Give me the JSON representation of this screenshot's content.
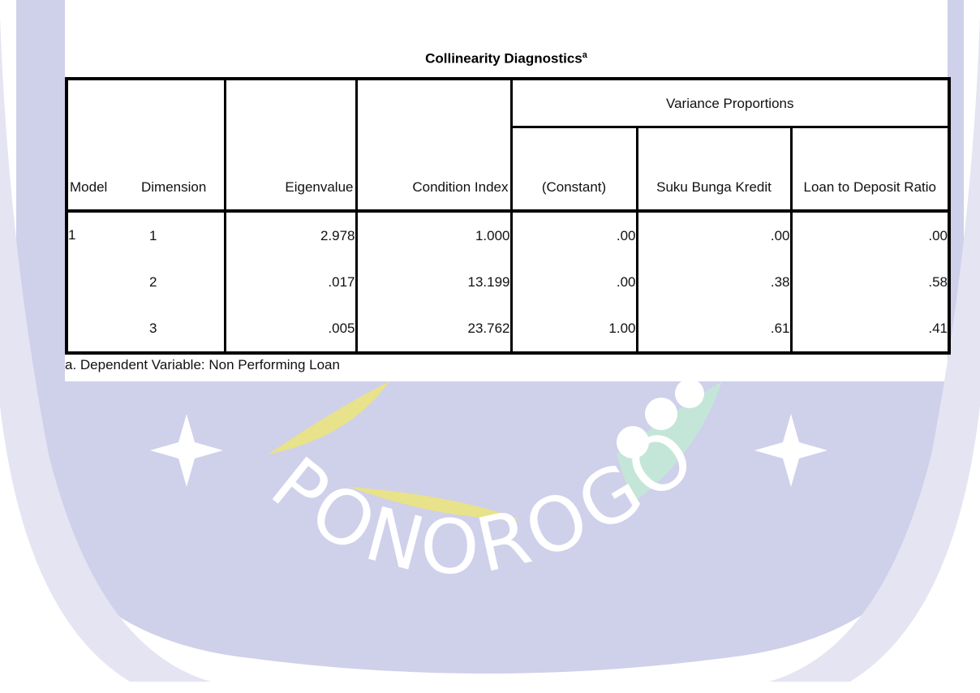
{
  "watermark": {
    "text": "PONOROGO"
  },
  "table": {
    "title": "Collinearity Diagnostics",
    "title_note": "a",
    "headers": {
      "model": "Model",
      "dimension": "Dimension",
      "eigenvalue": "Eigenvalue",
      "condition_index": "Condition Index",
      "group": "Variance Proportions",
      "proportions": [
        "(Constant)",
        "Suku Bunga Kredit",
        "Loan to Deposit Ratio"
      ]
    },
    "groups": [
      {
        "model": "1",
        "rows": [
          [
            "1",
            "2.978",
            "1.000",
            ".00",
            ".00",
            ".00"
          ],
          [
            "2",
            ".017",
            "13.199",
            ".00",
            ".38",
            ".58"
          ],
          [
            "3",
            ".005",
            "23.762",
            "1.00",
            ".61",
            ".41"
          ]
        ]
      }
    ],
    "footnote": "a. Dependent Variable: Non Performing Loan"
  }
}
